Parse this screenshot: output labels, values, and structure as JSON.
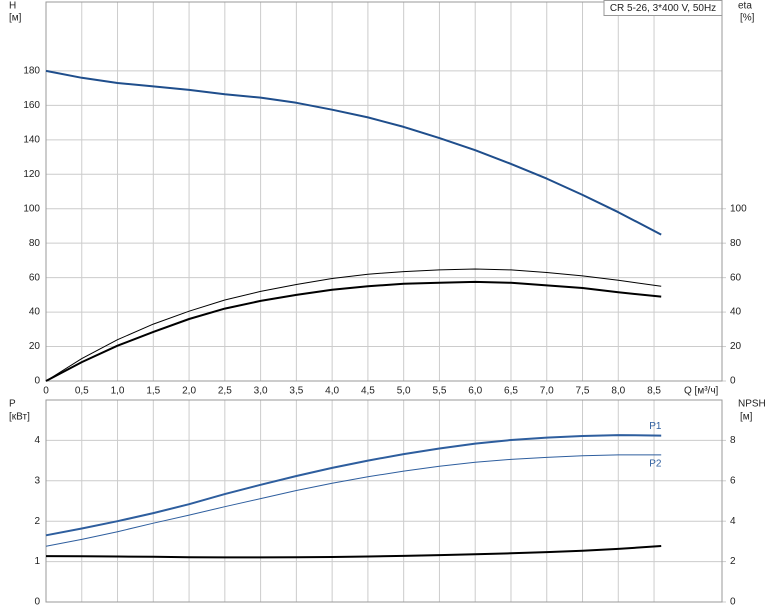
{
  "chart_data": [
    {
      "type": "line",
      "title": "CR 5-26, 3*400 V, 50Hz",
      "ylabel": "H",
      "ylabel_unit": "[м]",
      "y2label": "eta",
      "y2label_unit": "[%]",
      "xlabel": "Q [м³/ч]",
      "x": [
        0,
        0.5,
        1.0,
        1.5,
        2.0,
        2.5,
        3.0,
        3.5,
        4.0,
        4.5,
        5.0,
        5.5,
        6.0,
        6.5,
        7.0,
        7.5,
        8.0,
        8.6
      ],
      "xlim": [
        0,
        9.45
      ],
      "xticks": [
        0,
        {
          "value": 0.5,
          "label": "0,5"
        },
        {
          "value": 1.0,
          "label": "1,0"
        },
        {
          "value": 1.5,
          "label": "1,5"
        },
        {
          "value": 2.0,
          "label": "2,0"
        },
        {
          "value": 2.5,
          "label": "2,5"
        },
        {
          "value": 3.0,
          "label": "3,0"
        },
        {
          "value": 3.5,
          "label": "3,5"
        },
        {
          "value": 4.0,
          "label": "4,0"
        },
        {
          "value": 4.5,
          "label": "4,5"
        },
        {
          "value": 5.0,
          "label": "5,0"
        },
        {
          "value": 5.5,
          "label": "5,5"
        },
        {
          "value": 6.0,
          "label": "6,0"
        },
        {
          "value": 6.5,
          "label": "6,5"
        },
        {
          "value": 7.0,
          "label": "7,0"
        },
        {
          "value": 7.5,
          "label": "7,5"
        },
        {
          "value": 8.0,
          "label": "8,0"
        },
        {
          "value": 8.5,
          "label": "8,5"
        }
      ],
      "ylim": [
        0,
        220
      ],
      "yticks": [
        0,
        20,
        40,
        60,
        80,
        100,
        120,
        140,
        160,
        180
      ],
      "y2lim": [
        0,
        220
      ],
      "y2ticks": [
        0,
        20,
        40,
        60,
        80,
        100
      ],
      "grid": true,
      "series": [
        {
          "color": "#1f4e8c",
          "line_width": 2,
          "values": [
            180,
            176,
            173,
            171,
            169,
            166.5,
            164.5,
            161.5,
            157.5,
            153,
            147.5,
            141,
            134,
            126,
            117.5,
            108,
            98,
            85
          ]
        },
        {
          "color": "#000000",
          "line_width": 1,
          "axis": "y2",
          "values": [
            0,
            13,
            24,
            33,
            40.5,
            47,
            52,
            56,
            59.5,
            62,
            63.5,
            64.5,
            65,
            64.5,
            63,
            61,
            58.5,
            55
          ]
        },
        {
          "color": "#000000",
          "line_width": 2,
          "axis": "y2",
          "values": [
            0,
            11,
            20.5,
            28.5,
            36,
            42,
            46.5,
            50,
            53,
            55,
            56.5,
            57,
            57.5,
            57,
            55.5,
            54,
            51.5,
            49
          ]
        }
      ]
    },
    {
      "type": "line",
      "ylabel": "P",
      "ylabel_unit": "[кВт]",
      "y2label": "NPSH",
      "y2label_unit": "[м]",
      "x": [
        0,
        0.5,
        1.0,
        1.5,
        2.0,
        2.5,
        3.0,
        3.5,
        4.0,
        4.5,
        5.0,
        5.5,
        6.0,
        6.5,
        7.0,
        7.5,
        8.0,
        8.6
      ],
      "xlim": [
        0,
        9.45
      ],
      "xticks": [
        0,
        0.5,
        1.0,
        1.5,
        2.0,
        2.5,
        3.0,
        3.5,
        4.0,
        4.5,
        5.0,
        5.5,
        6.0,
        6.5,
        7.0,
        7.5,
        8.0,
        8.5
      ],
      "ylim": [
        0,
        5
      ],
      "yticks": [
        0,
        1,
        2,
        3,
        4
      ],
      "y2lim": [
        0,
        10
      ],
      "y2ticks": [
        0,
        2,
        4,
        6,
        8
      ],
      "grid": true,
      "series": [
        {
          "name": "P1",
          "color": "#2e5e9e",
          "line_width": 2,
          "values": [
            1.65,
            1.82,
            2.0,
            2.2,
            2.42,
            2.67,
            2.9,
            3.12,
            3.32,
            3.5,
            3.66,
            3.8,
            3.92,
            4.01,
            4.07,
            4.11,
            4.13,
            4.12
          ]
        },
        {
          "name": "P2",
          "color": "#2e5e9e",
          "line_width": 1,
          "values": [
            1.38,
            1.55,
            1.74,
            1.95,
            2.15,
            2.36,
            2.56,
            2.76,
            2.94,
            3.1,
            3.24,
            3.36,
            3.46,
            3.53,
            3.58,
            3.62,
            3.64,
            3.64
          ]
        },
        {
          "color": "#000000",
          "line_width": 2,
          "axis": "y2",
          "values": [
            2.27,
            2.26,
            2.25,
            2.24,
            2.22,
            2.21,
            2.21,
            2.22,
            2.23,
            2.25,
            2.28,
            2.32,
            2.36,
            2.41,
            2.47,
            2.54,
            2.63,
            2.77
          ]
        }
      ]
    }
  ]
}
